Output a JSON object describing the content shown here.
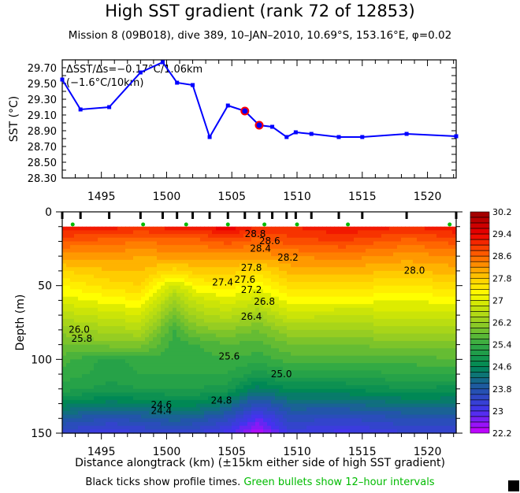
{
  "header": {
    "title": "High SST gradient (rank 72 of 12853)",
    "subtitle": "Mission 8 (09B018),  dive 389,  10–JAN–2010,  10.69°S, 153.16°E,  φ=0.02"
  },
  "footer": {
    "xlabel": "Distance alongtrack (km) (±15km either side of high SST gradient)",
    "note_black": "Black ticks show profile times. ",
    "note_green": "Green bullets show 12–hour intervals"
  },
  "chart_data": [
    {
      "type": "line",
      "ylabel": "SST (°C)",
      "xlim": [
        1492,
        1522.2
      ],
      "ylim": [
        28.3,
        29.8
      ],
      "xticks": [
        1495,
        1500,
        1505,
        1510,
        1515,
        1520
      ],
      "yticks": [
        "28.30",
        "28.50",
        "28.70",
        "28.90",
        "29.10",
        "29.30",
        "29.50",
        "29.70"
      ],
      "annotation": [
        "ΔSST/Δs=−0.17°C/1.06km",
        "(−1.6°C/10km)"
      ],
      "line_color": "#0000ff",
      "highlight_color": "#ff0000",
      "x": [
        1492.0,
        1493.4,
        1495.6,
        1498.0,
        1499.7,
        1500.8,
        1502.0,
        1503.3,
        1504.7,
        1506.0,
        1507.1,
        1508.1,
        1509.2,
        1509.9,
        1511.1,
        1513.2,
        1515.0,
        1518.4,
        1522.2
      ],
      "y": [
        29.55,
        29.17,
        29.2,
        29.64,
        29.77,
        29.51,
        29.48,
        28.82,
        29.22,
        29.15,
        28.97,
        28.95,
        28.82,
        28.88,
        28.86,
        28.82,
        28.82,
        28.86,
        28.83
      ],
      "highlight_index": [
        9,
        10
      ]
    },
    {
      "type": "heatmap",
      "ylabel": "Depth (m)",
      "xlim": [
        1492,
        1522.2
      ],
      "ylim": [
        150,
        0
      ],
      "xticks": [
        1495,
        1500,
        1505,
        1510,
        1515,
        1520
      ],
      "yticks": [
        0,
        50,
        100,
        150
      ],
      "colorbar": {
        "min": 22.2,
        "max": 30.2,
        "step": 0.2,
        "labels": [
          "30.2",
          "29.4",
          "28.6",
          "27.8",
          "27",
          "26.2",
          "25.4",
          "24.6",
          "23.8",
          "23",
          "22.2"
        ]
      },
      "profile_x": [
        1492.0,
        1493.4,
        1495.6,
        1498.0,
        1499.7,
        1500.8,
        1502.0,
        1503.3,
        1504.7,
        1506.0,
        1507.1,
        1508.1,
        1509.2,
        1509.9,
        1511.1,
        1513.2,
        1515.0,
        1518.4,
        1522.2
      ],
      "bullet_x": [
        1492.8,
        1498.2,
        1501.5,
        1504.7,
        1507.5,
        1510.0,
        1513.9,
        1521.7
      ],
      "bullet_color": "#00bb00",
      "depths": [
        10,
        20,
        30,
        40,
        50,
        60,
        70,
        80,
        90,
        100,
        110,
        120,
        130,
        140,
        150
      ],
      "columns": [
        {
          "x": 1492.0,
          "t": [
            29.3,
            28.7,
            28.2,
            27.7,
            27.3,
            27.0,
            26.6,
            26.2,
            25.9,
            25.6,
            25.4,
            25.2,
            24.6,
            23.9,
            23.4
          ]
        },
        {
          "x": 1495.7,
          "t": [
            29.2,
            28.6,
            28.2,
            27.9,
            27.6,
            27.2,
            26.8,
            26.4,
            26.0,
            25.2,
            25.2,
            25.0,
            24.4,
            23.7,
            23.1
          ]
        },
        {
          "x": 1498.0,
          "t": [
            29.1,
            28.5,
            28.1,
            27.9,
            27.7,
            27.3,
            26.9,
            26.5,
            26.0,
            25.4,
            25.3,
            25.1,
            24.5,
            23.8,
            23.3
          ]
        },
        {
          "x": 1500.6,
          "t": [
            29.2,
            28.6,
            28.2,
            27.6,
            26.8,
            26.3,
            25.9,
            25.5,
            25.4,
            25.4,
            25.3,
            25.1,
            24.6,
            24.0,
            23.4
          ]
        },
        {
          "x": 1502.3,
          "t": [
            29.2,
            28.6,
            28.2,
            27.8,
            27.3,
            26.8,
            26.4,
            26.0,
            25.5,
            25.4,
            25.3,
            25.1,
            24.6,
            23.9,
            23.3
          ]
        },
        {
          "x": 1504.6,
          "t": [
            29.5,
            28.8,
            28.2,
            27.8,
            27.4,
            27.0,
            26.6,
            26.1,
            25.7,
            25.5,
            25.3,
            25.0,
            24.3,
            23.6,
            23.0
          ]
        },
        {
          "x": 1507.0,
          "t": [
            29.1,
            28.6,
            28.2,
            27.6,
            27.2,
            26.8,
            26.3,
            25.9,
            25.6,
            25.4,
            25.0,
            24.4,
            23.6,
            22.9,
            22.3
          ]
        },
        {
          "x": 1509.5,
          "t": [
            29.1,
            28.8,
            28.3,
            28.0,
            27.6,
            27.2,
            26.8,
            26.3,
            25.9,
            25.6,
            25.2,
            24.7,
            24.1,
            23.6,
            23.2
          ]
        },
        {
          "x": 1513.5,
          "t": [
            29.3,
            28.9,
            28.4,
            28.0,
            27.6,
            27.2,
            26.7,
            26.3,
            25.9,
            25.6,
            25.2,
            24.7,
            24.1,
            23.5,
            23.0
          ]
        },
        {
          "x": 1518.5,
          "t": [
            29.1,
            28.6,
            28.2,
            27.9,
            27.5,
            27.1,
            26.8,
            26.4,
            26.0,
            25.6,
            25.3,
            24.9,
            24.3,
            23.7,
            23.3
          ]
        },
        {
          "x": 1522.2,
          "t": [
            29.3,
            28.8,
            28.3,
            28.0,
            27.6,
            27.2,
            26.8,
            26.4,
            26.0,
            25.7,
            25.3,
            24.8,
            24.3,
            23.7,
            23.3
          ]
        }
      ],
      "contour_labels": [
        {
          "text": "28.8",
          "x": 1506.8,
          "d": 17
        },
        {
          "text": "28.6",
          "x": 1507.9,
          "d": 22
        },
        {
          "text": "28.4",
          "x": 1507.2,
          "d": 27
        },
        {
          "text": "28.2",
          "x": 1509.3,
          "d": 33
        },
        {
          "text": "28.0",
          "x": 1519.0,
          "d": 42
        },
        {
          "text": "27.8",
          "x": 1506.5,
          "d": 40
        },
        {
          "text": "27.6",
          "x": 1506.0,
          "d": 48
        },
        {
          "text": "27.4",
          "x": 1504.3,
          "d": 50
        },
        {
          "text": "27.2",
          "x": 1506.5,
          "d": 55
        },
        {
          "text": "26.8",
          "x": 1507.5,
          "d": 63
        },
        {
          "text": "26.4",
          "x": 1506.5,
          "d": 73
        },
        {
          "text": "26.0",
          "x": 1493.3,
          "d": 82
        },
        {
          "text": "25.8",
          "x": 1493.5,
          "d": 88
        },
        {
          "text": "25.6",
          "x": 1504.8,
          "d": 100
        },
        {
          "text": "25.0",
          "x": 1508.8,
          "d": 112
        },
        {
          "text": "24.8",
          "x": 1504.2,
          "d": 130
        },
        {
          "text": "24.6",
          "x": 1499.6,
          "d": 133
        },
        {
          "text": "24.4",
          "x": 1499.6,
          "d": 137
        }
      ]
    }
  ]
}
